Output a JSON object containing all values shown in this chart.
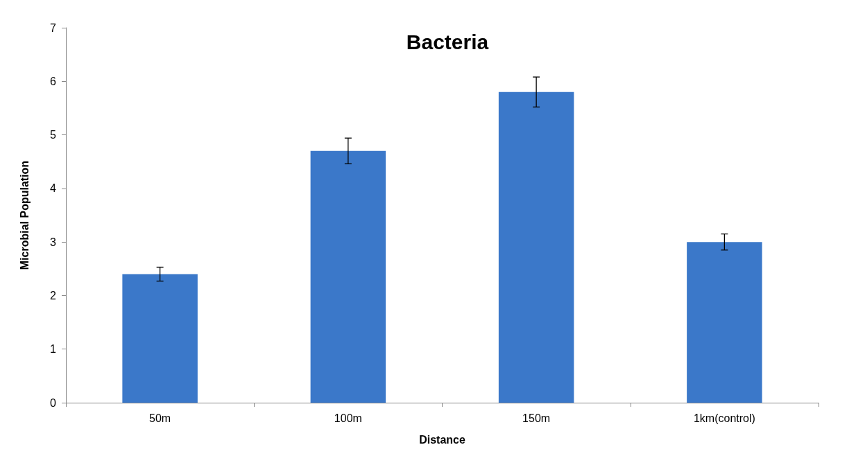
{
  "chart_data": {
    "type": "bar",
    "title": "Bacteria",
    "xlabel": "Distance",
    "ylabel": "Microbial Population",
    "categories": [
      "50m",
      "100m",
      "150m",
      "1km(control)"
    ],
    "values": [
      2.4,
      4.7,
      5.8,
      3.0
    ],
    "errors": [
      0.13,
      0.24,
      0.28,
      0.15
    ],
    "color": "#3b78c9",
    "ylim": [
      0,
      7
    ],
    "yticks": [
      0,
      1,
      2,
      3,
      4,
      5,
      6,
      7
    ],
    "grid": false
  }
}
